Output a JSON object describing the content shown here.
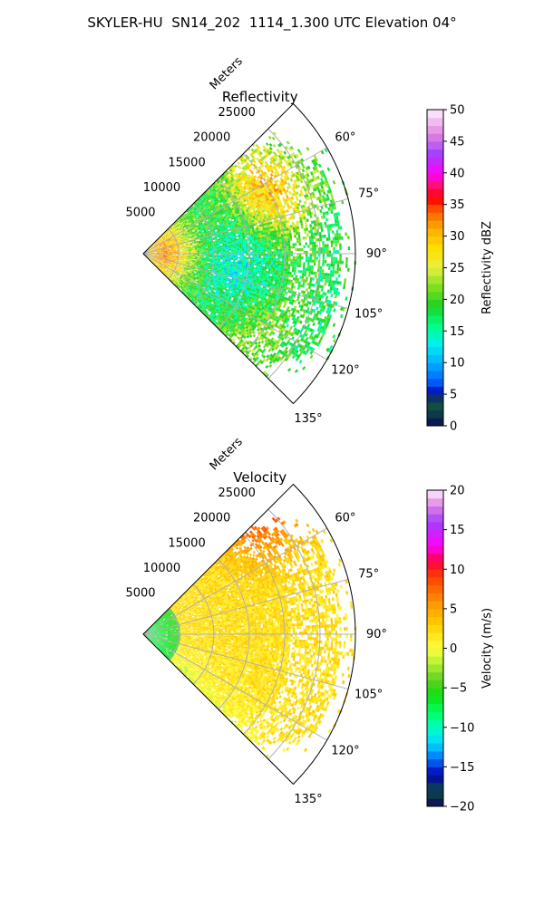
{
  "figure": {
    "suptitle": "SKYLER-HU  SN14_202  1114_1.300 UTC Elevation 04°"
  },
  "chart_data": [
    {
      "type": "heatmap",
      "title": "Reflectivity",
      "r_axis_label": "Meters",
      "r_ticks": [
        5000,
        10000,
        15000,
        20000,
        25000
      ],
      "r_tick_labels": [
        "5000",
        "10000",
        "15000",
        "20000",
        "25000"
      ],
      "r_lim": [
        0,
        30000
      ],
      "theta_lim_deg": [
        45,
        135
      ],
      "theta_ticks_deg": [
        60,
        75,
        90,
        105,
        120,
        135
      ],
      "theta_tick_labels": [
        "60°",
        "75°",
        "90°",
        "105°",
        "120°",
        "135°"
      ],
      "grid": true,
      "colorbar": {
        "label": "Reflectivity dBZ",
        "range": [
          0,
          50
        ],
        "ticks": [
          0,
          5,
          10,
          15,
          20,
          25,
          30,
          35,
          40,
          45,
          50
        ],
        "tick_labels": [
          "0",
          "5",
          "10",
          "15",
          "20",
          "25",
          "30",
          "35",
          "40",
          "45",
          "50"
        ],
        "stops": [
          {
            "value": 0,
            "color": "#0a0a55"
          },
          {
            "value": 2.5,
            "color": "#0e4a44"
          },
          {
            "value": 4,
            "color": "#15503a"
          },
          {
            "value": 5,
            "color": "#0000a8"
          },
          {
            "value": 7,
            "color": "#0060ff"
          },
          {
            "value": 10,
            "color": "#00b0ff"
          },
          {
            "value": 13,
            "color": "#00f0f0"
          },
          {
            "value": 16,
            "color": "#00ff80"
          },
          {
            "value": 19,
            "color": "#20d020"
          },
          {
            "value": 22,
            "color": "#80e020"
          },
          {
            "value": 25,
            "color": "#e8f040"
          },
          {
            "value": 28,
            "color": "#ffe000"
          },
          {
            "value": 31,
            "color": "#ffb000"
          },
          {
            "value": 34,
            "color": "#ff6000"
          },
          {
            "value": 36,
            "color": "#ff0000"
          },
          {
            "value": 38,
            "color": "#ff1070"
          },
          {
            "value": 40,
            "color": "#ff00ff"
          },
          {
            "value": 43,
            "color": "#a040ff"
          },
          {
            "value": 46,
            "color": "#e080e0"
          },
          {
            "value": 50,
            "color": "#fff0ff"
          }
        ]
      },
      "field_description": "Mostly 15–25 dBZ; 25–35 dBZ near radar and at 60–75° around 15–25 km; lower values near 90–105°."
    },
    {
      "type": "heatmap",
      "title": "Velocity",
      "r_axis_label": "Meters",
      "r_ticks": [
        5000,
        10000,
        15000,
        20000,
        25000
      ],
      "r_tick_labels": [
        "5000",
        "10000",
        "15000",
        "20000",
        "25000"
      ],
      "r_lim": [
        0,
        30000
      ],
      "theta_lim_deg": [
        45,
        135
      ],
      "theta_ticks_deg": [
        60,
        75,
        90,
        105,
        120,
        135
      ],
      "theta_tick_labels": [
        "60°",
        "75°",
        "90°",
        "105°",
        "120°",
        "135°"
      ],
      "grid": true,
      "colorbar": {
        "label": "Velocity (m/s)",
        "range": [
          -20,
          20
        ],
        "ticks": [
          -20,
          -15,
          -10,
          -5,
          0,
          5,
          10,
          15,
          20
        ],
        "tick_labels": [
          "−20",
          "−15",
          "−10",
          "−5",
          "0",
          "5",
          "10",
          "15",
          "20"
        ],
        "stops": [
          {
            "value": -20,
            "color": "#0a0a55"
          },
          {
            "value": -18,
            "color": "#0e4a44"
          },
          {
            "value": -16,
            "color": "#0000b0"
          },
          {
            "value": -14,
            "color": "#0070ff"
          },
          {
            "value": -12,
            "color": "#00d8ff"
          },
          {
            "value": -10,
            "color": "#00ffc0"
          },
          {
            "value": -8,
            "color": "#00ff60"
          },
          {
            "value": -6,
            "color": "#10e010"
          },
          {
            "value": -4,
            "color": "#60d020"
          },
          {
            "value": -2,
            "color": "#b0f030"
          },
          {
            "value": 0,
            "color": "#ffff40"
          },
          {
            "value": 3,
            "color": "#ffd000"
          },
          {
            "value": 6,
            "color": "#ff9000"
          },
          {
            "value": 9,
            "color": "#ff4000"
          },
          {
            "value": 11,
            "color": "#ff0040"
          },
          {
            "value": 13,
            "color": "#ff00ff"
          },
          {
            "value": 16,
            "color": "#a040ff"
          },
          {
            "value": 18,
            "color": "#e080e0"
          },
          {
            "value": 20,
            "color": "#fff0ff"
          }
        ]
      },
      "field_description": "Negative (−10 to −5 m/s) within ~5 km of radar; ~0 to +5 m/s beyond; +7 to +10 m/s near 60°, 20–25 km; −3 to −1 m/s near 120–130°."
    }
  ]
}
